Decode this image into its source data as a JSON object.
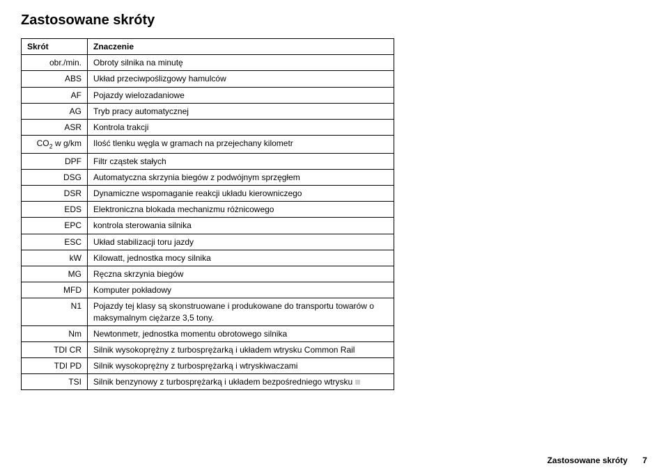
{
  "title": "Zastosowane skróty",
  "table": {
    "header": {
      "left": "Skrót",
      "right": "Znaczenie"
    },
    "rows": [
      {
        "abbr": "obr./min.",
        "meaning": "Obroty silnika na minutę"
      },
      {
        "abbr": "ABS",
        "meaning": "Układ przeciwpoślizgowy hamulców"
      },
      {
        "abbr": "AF",
        "meaning": "Pojazdy wielozadaniowe"
      },
      {
        "abbr": "AG",
        "meaning": "Tryb pracy automatycznej"
      },
      {
        "abbr": "ASR",
        "meaning": "Kontrola trakcji"
      },
      {
        "abbr": "CO2 w g/km",
        "abbr_sub": true,
        "meaning": "Ilość tlenku węgla w gramach na przejechany kilometr"
      },
      {
        "abbr": "DPF",
        "meaning": "Filtr cząstek stałych"
      },
      {
        "abbr": "DSG",
        "meaning": "Automatyczna skrzynia biegów z podwójnym sprzęgłem"
      },
      {
        "abbr": "DSR",
        "meaning": "Dynamiczne wspomaganie reakcji układu kierowniczego"
      },
      {
        "abbr": "EDS",
        "meaning": "Elektroniczna blokada mechanizmu różnicowego"
      },
      {
        "abbr": "EPC",
        "meaning": "kontrola sterowania silnika"
      },
      {
        "abbr": "ESC",
        "meaning": "Układ stabilizacji toru jazdy"
      },
      {
        "abbr": "kW",
        "meaning": "Kilowatt, jednostka mocy silnika"
      },
      {
        "abbr": "MG",
        "meaning": "Ręczna skrzynia biegów"
      },
      {
        "abbr": "MFD",
        "meaning": "Komputer pokładowy"
      },
      {
        "abbr": "N1",
        "meaning": "Pojazdy tej klasy są skonstruowane i produkowane do transportu towarów o maksymalnym ciężarze 3,5 tony."
      },
      {
        "abbr": "Nm",
        "meaning": "Newtonmetr, jednostka momentu obrotowego silnika"
      },
      {
        "abbr": "TDI CR",
        "meaning": "Silnik wysokoprężny z turbosprężarką i układem wtrysku Common Rail"
      },
      {
        "abbr": "TDI PD",
        "meaning": "Silnik wysokoprężny z turbosprężarką i wtryskiwaczami"
      },
      {
        "abbr": "TSI",
        "meaning": "Silnik benzynowy z turbosprężarką i układem bezpośredniego wtrysku",
        "end_mark": true
      }
    ]
  },
  "footer": {
    "label": "Zastosowane skróty",
    "page": "7"
  }
}
